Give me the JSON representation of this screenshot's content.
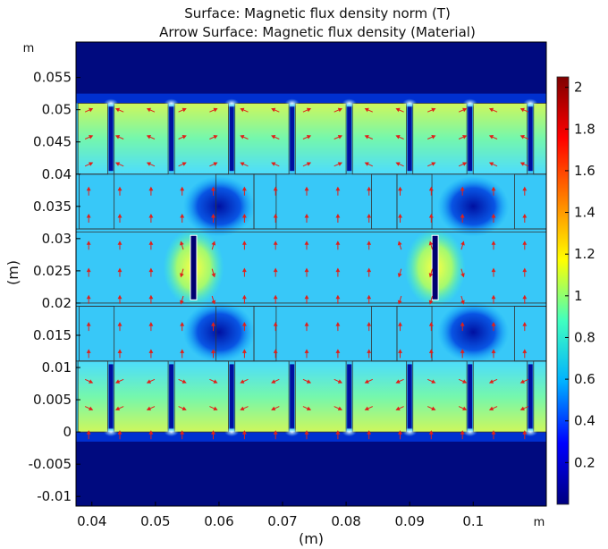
{
  "chart_data": {
    "type": "heatmap",
    "title": "Surface: Magnetic flux density norm (T)",
    "subtitle": "Arrow Surface: Magnetic flux density (Material)",
    "xlabel": "(m)",
    "ylabel": "(m)",
    "x_unit": "m",
    "y_unit": "m",
    "xlim": [
      0.0375,
      0.1115
    ],
    "ylim": [
      -0.0115,
      0.0605
    ],
    "x_ticks": [
      {
        "value": 0.04,
        "label": "0.04"
      },
      {
        "value": 0.05,
        "label": "0.05"
      },
      {
        "value": 0.06,
        "label": "0.06"
      },
      {
        "value": 0.07,
        "label": "0.07"
      },
      {
        "value": 0.08,
        "label": "0.08"
      },
      {
        "value": 0.09,
        "label": "0.09"
      },
      {
        "value": 0.1,
        "label": "0.1"
      }
    ],
    "y_ticks": [
      {
        "value": 0.055,
        "label": "0.055"
      },
      {
        "value": 0.05,
        "label": "0.05"
      },
      {
        "value": 0.045,
        "label": "0.045"
      },
      {
        "value": 0.04,
        "label": "0.04"
      },
      {
        "value": 0.035,
        "label": "0.035"
      },
      {
        "value": 0.03,
        "label": "0.03"
      },
      {
        "value": 0.025,
        "label": "0.025"
      },
      {
        "value": 0.02,
        "label": "0.02"
      },
      {
        "value": 0.015,
        "label": "0.015"
      },
      {
        "value": 0.01,
        "label": "0.01"
      },
      {
        "value": 0.005,
        "label": "0.005"
      },
      {
        "value": 0,
        "label": "0"
      },
      {
        "value": -0.005,
        "label": "-0.005"
      },
      {
        "value": -0.01,
        "label": "-0.01"
      }
    ],
    "colorbar": {
      "min": 0.0,
      "max": 2.05,
      "colormap": [
        "#00007f",
        "#0000ff",
        "#00b0ff",
        "#40ffc0",
        "#ffff00",
        "#ff7f00",
        "#ff0000",
        "#7f0000"
      ],
      "ticks": [
        {
          "value": 2,
          "label": "2"
        },
        {
          "value": 1.8,
          "label": "1.8"
        },
        {
          "value": 1.6,
          "label": "1.6"
        },
        {
          "value": 1.4,
          "label": "1.4"
        },
        {
          "value": 1.2,
          "label": "1.2"
        },
        {
          "value": 1,
          "label": "1"
        },
        {
          "value": 0.8,
          "label": "0.8"
        },
        {
          "value": 0.6,
          "label": "0.6"
        },
        {
          "value": 0.4,
          "label": "0.4"
        },
        {
          "value": 0.2,
          "label": "0.2"
        }
      ]
    },
    "arrow_color": "#e0201a",
    "boundary_color": "#333333",
    "background_field_color": "#000a7f"
  }
}
